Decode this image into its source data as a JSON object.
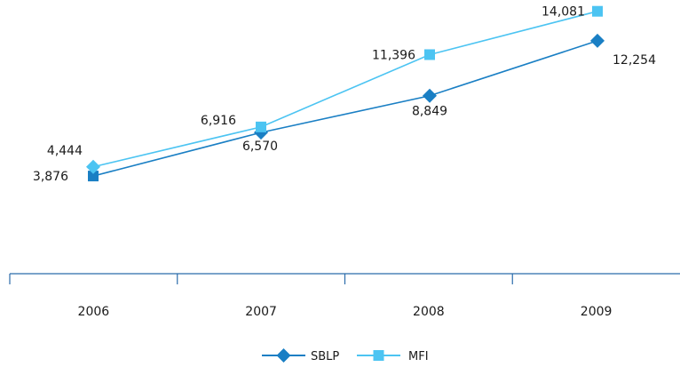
{
  "chart_data": {
    "type": "line",
    "title": "",
    "xlabel": "",
    "ylabel": "",
    "categories": [
      "2006",
      "2007",
      "2008",
      "2009"
    ],
    "ylim": [
      0,
      16000
    ],
    "grid": false,
    "legend_position": "bottom",
    "series": [
      {
        "name": "SBLP",
        "values": [
          3876,
          6570,
          8849,
          12254
        ],
        "labels": [
          "3,876",
          "6,570",
          "8,849",
          "12,254"
        ],
        "color": "#1a7fc4",
        "marker": "diamond"
      },
      {
        "name": "MFI",
        "values": [
          4444,
          6916,
          11396,
          14081
        ],
        "labels": [
          "4,444",
          "6,916",
          "11,396",
          "14,081"
        ],
        "color": "#4cc4f2",
        "marker": "square"
      }
    ]
  }
}
